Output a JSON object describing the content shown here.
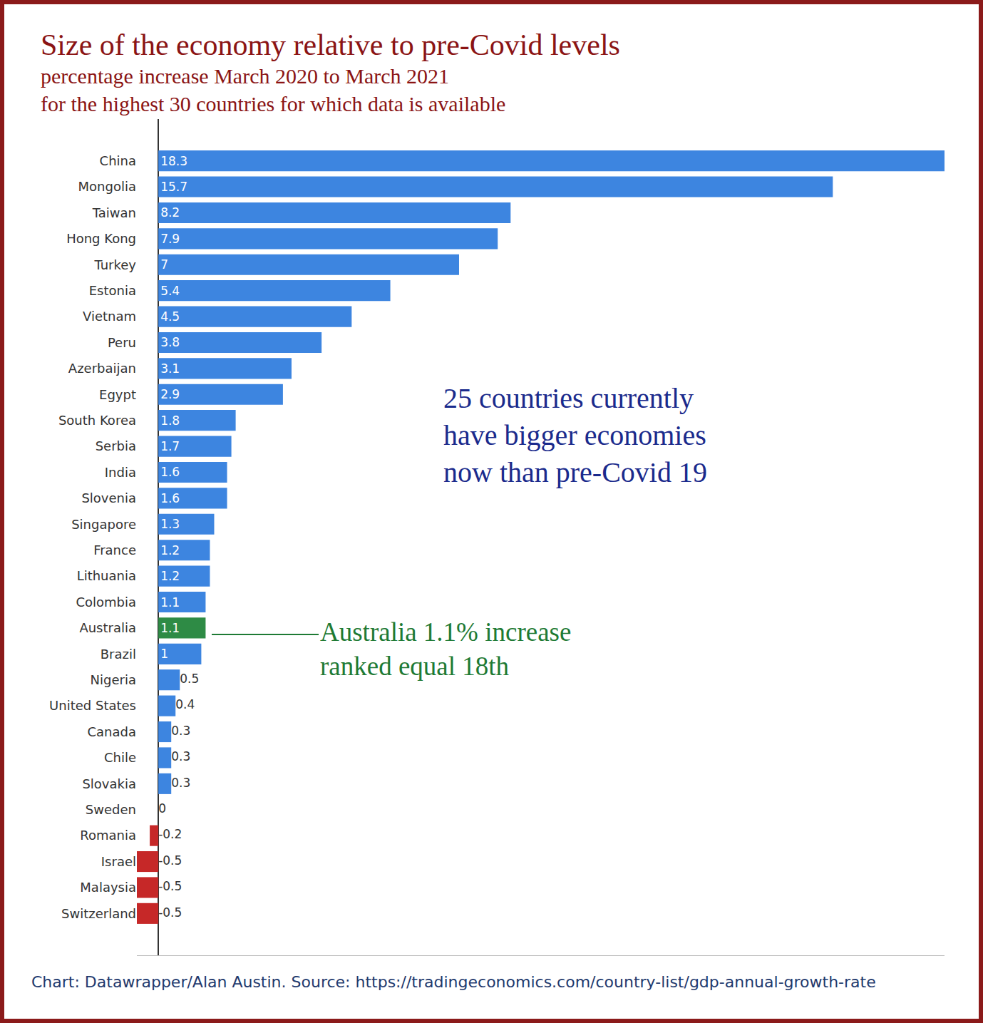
{
  "chart_data": {
    "type": "bar",
    "orientation": "horizontal",
    "title": "Size of the economy relative to pre-Covid levels",
    "subtitle": [
      "percentage increase March 2020 to March 2021",
      "for the highest 30 countries for which data is available"
    ],
    "categories": [
      "China",
      "Mongolia",
      "Taiwan",
      "Hong Kong",
      "Turkey",
      "Estonia",
      "Vietnam",
      "Peru",
      "Azerbaijan",
      "Egypt",
      "South Korea",
      "Serbia",
      "India",
      "Slovenia",
      "Singapore",
      "France",
      "Lithuania",
      "Colombia",
      "Australia",
      "Brazil",
      "Nigeria",
      "United States",
      "Canada",
      "Chile",
      "Slovakia",
      "Sweden",
      "Romania",
      "Israel",
      "Malaysia",
      "Switzerland"
    ],
    "values": [
      18.3,
      15.7,
      8.2,
      7.9,
      7,
      5.4,
      4.5,
      3.8,
      3.1,
      2.9,
      1.8,
      1.7,
      1.6,
      1.6,
      1.3,
      1.2,
      1.2,
      1.1,
      1.1,
      1,
      0.5,
      0.4,
      0.3,
      0.3,
      0.3,
      0,
      -0.2,
      -0.5,
      -0.5,
      -0.5
    ],
    "colors": [
      "#3d85e0",
      "#3d85e0",
      "#3d85e0",
      "#3d85e0",
      "#3d85e0",
      "#3d85e0",
      "#3d85e0",
      "#3d85e0",
      "#3d85e0",
      "#3d85e0",
      "#3d85e0",
      "#3d85e0",
      "#3d85e0",
      "#3d85e0",
      "#3d85e0",
      "#3d85e0",
      "#3d85e0",
      "#3d85e0",
      "#2e8b45",
      "#3d85e0",
      "#3d85e0",
      "#3d85e0",
      "#3d85e0",
      "#3d85e0",
      "#3d85e0",
      "#3d85e0",
      "#c62828",
      "#c62828",
      "#c62828",
      "#c62828"
    ],
    "xlim": [
      -0.5,
      18.3
    ],
    "data_labels": true,
    "tick_labels": "y",
    "grid": false,
    "annotations": [
      {
        "text": [
          "25 countries currently",
          "have bigger economies",
          "now than pre-Covid 19"
        ],
        "color": "#1a2a8c"
      },
      {
        "text": [
          "Australia 1.1% increase",
          "ranked equal 18th"
        ],
        "color": "#1e7a34"
      }
    ],
    "source": "Chart: Datawrapper/Alan Austin. Source: https://tradingeconomics.com/country-list/gdp-annual-growth-rate"
  }
}
